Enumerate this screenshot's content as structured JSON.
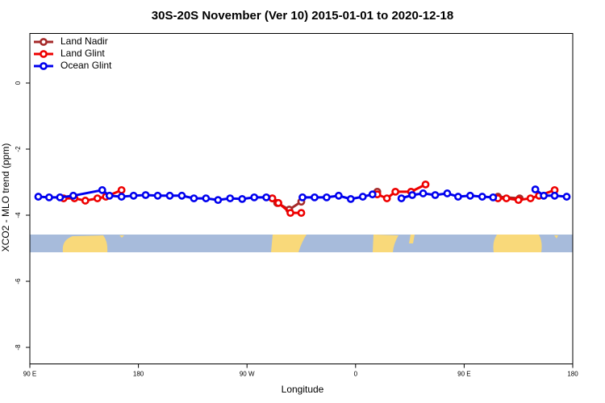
{
  "chart_data": {
    "type": "line",
    "title": "30S-20S November (Ver 10)   2015-01-01 to 2020-12-18",
    "x_label": "Longitude",
    "y_label": "XCO2 - MLO trend (ppm)",
    "xlim": [
      90,
      540
    ],
    "ylim": [
      -8.5,
      1.5
    ],
    "xticks": [
      {
        "value": 90,
        "label": "90 E"
      },
      180,
      {
        "value": 270,
        "label": "90 W"
      },
      {
        "value": 360,
        "label": "0"
      },
      {
        "value": 450,
        "label": "90 E"
      },
      {
        "value": 540,
        "label": "180"
      }
    ],
    "yticks": [
      0,
      -2,
      -4,
      -6,
      -8
    ],
    "legend": "top-left",
    "series": [
      {
        "name": "Land Nadir",
        "color": "#a52a2a",
        "x": [
          291,
          295,
          305,
          315,
          340,
          378,
          450,
          478,
          496
        ],
        "values": [
          -3.49,
          -3.63,
          -3.83,
          -3.59,
          null,
          -3.29,
          null,
          -3.44,
          -3.49
        ]
      },
      {
        "name": "Land Glint",
        "color": "#ee0000",
        "x": [
          118,
          127,
          136,
          146,
          153,
          166,
          250,
          291,
          296,
          306,
          315,
          350,
          378,
          386,
          393,
          406,
          418,
          450,
          478,
          485,
          495,
          505,
          512,
          525
        ],
        "values": [
          -3.49,
          -3.49,
          -3.56,
          -3.49,
          -3.44,
          -3.24,
          null,
          -3.49,
          -3.63,
          -3.93,
          -3.93,
          null,
          -3.37,
          -3.49,
          -3.29,
          -3.29,
          -3.07,
          null,
          -3.49,
          -3.49,
          -3.54,
          -3.49,
          -3.41,
          -3.24
        ]
      },
      {
        "name": "Ocean Glint",
        "color": "#0000ee",
        "x": [
          97,
          106,
          115,
          126,
          150,
          156,
          166,
          176,
          186,
          196,
          206,
          216,
          226,
          236,
          246,
          256,
          266,
          276,
          286,
          300,
          316,
          326,
          336,
          346,
          356,
          366,
          374,
          386,
          398,
          407,
          416,
          426,
          436,
          445,
          455,
          465,
          474,
          490,
          509,
          516,
          525,
          535
        ],
        "values": [
          -3.44,
          -3.46,
          -3.46,
          -3.41,
          -3.24,
          -3.41,
          -3.44,
          -3.41,
          -3.39,
          -3.41,
          -3.41,
          -3.41,
          -3.49,
          -3.49,
          -3.54,
          -3.49,
          -3.51,
          -3.46,
          -3.46,
          null,
          -3.46,
          -3.46,
          -3.46,
          -3.41,
          -3.51,
          -3.44,
          -3.37,
          null,
          -3.49,
          -3.39,
          -3.34,
          -3.39,
          -3.34,
          -3.44,
          -3.41,
          -3.44,
          -3.46,
          null,
          -3.22,
          -3.41,
          -3.41,
          -3.44
        ]
      }
    ]
  }
}
